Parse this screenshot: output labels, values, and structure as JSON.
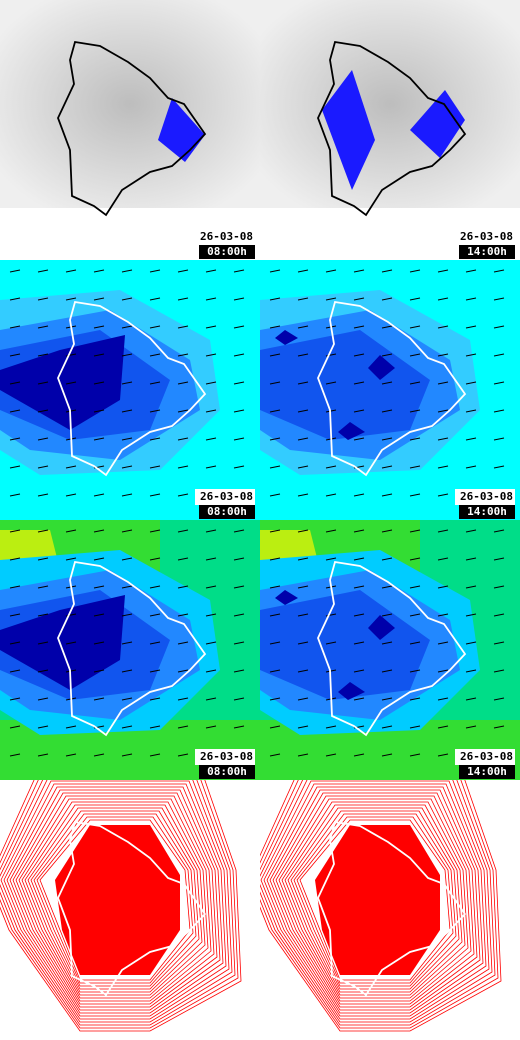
{
  "panels": [
    {
      "date": "26-03-08",
      "time": "08:00h"
    },
    {
      "date": "26-03-08",
      "time": "14:00h"
    },
    {
      "date": "26-03-08",
      "time": "08:00h"
    },
    {
      "date": "26-03-08",
      "time": "14:00h"
    },
    {
      "date": "26-03-08",
      "time": "08:00h"
    },
    {
      "date": "26-03-08",
      "time": "14:00h"
    }
  ]
}
